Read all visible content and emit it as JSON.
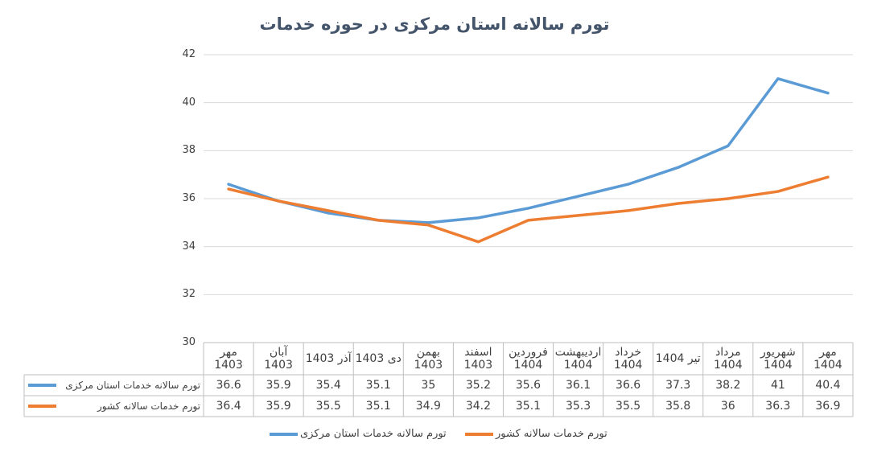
{
  "chart_data": {
    "type": "line",
    "title": "تورم سالانه استان مرکزی در حوزه خدمات",
    "categories": [
      "مهر 1403",
      "آبان 1403",
      "آذر 1403",
      "دی 1403",
      "بهمن 1403",
      "اسفند 1403",
      "فروردین 1404",
      "اردیبهشت 1404",
      "خرداد 1404",
      "تیر 1404",
      "مرداد 1404",
      "شهریور 1404",
      "مهر 1404"
    ],
    "series": [
      {
        "name": "تورم سالانه خدمات استان مرکزی",
        "color": "#5b9bd5",
        "values": [
          36.6,
          35.9,
          35.4,
          35.1,
          35,
          35.2,
          35.6,
          36.1,
          36.6,
          37.3,
          38.2,
          41,
          40.4
        ]
      },
      {
        "name": "تورم خدمات سالانه کشور",
        "color": "#ed7d31",
        "values": [
          36.4,
          35.9,
          35.5,
          35.1,
          34.9,
          34.2,
          35.1,
          35.3,
          35.5,
          35.8,
          36,
          36.3,
          36.9
        ]
      }
    ],
    "ylim": [
      30,
      42
    ],
    "yticks": [
      30,
      32,
      34,
      36,
      38,
      40,
      42
    ],
    "grid": true,
    "legend": "bottom",
    "data_table": true
  }
}
